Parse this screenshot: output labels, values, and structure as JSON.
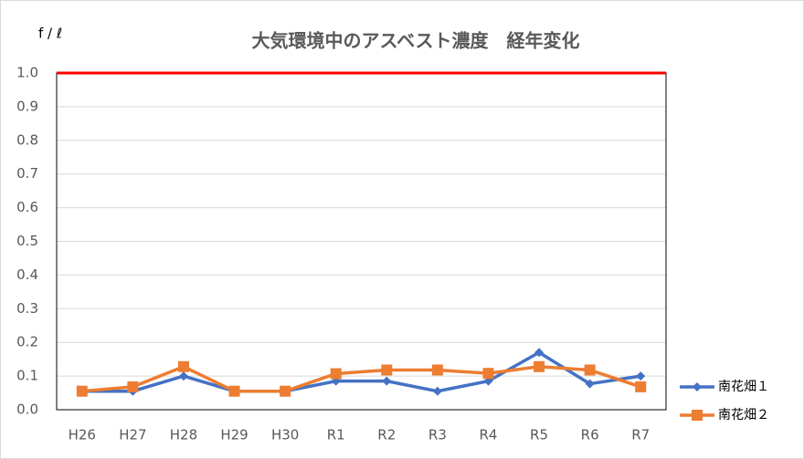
{
  "chart_data": {
    "type": "line",
    "title": "大気環境中のアスベスト濃度　経年変化",
    "y_axis_label": "f / ℓ",
    "categories": [
      "H26",
      "H27",
      "H28",
      "H29",
      "H30",
      "R1",
      "R2",
      "R3",
      "R4",
      "R5",
      "R6",
      "R7"
    ],
    "series": [
      {
        "name": "南花畑１",
        "color": "#4472c4",
        "marker": "diamond",
        "values": [
          0.055,
          0.055,
          0.1,
          0.055,
          0.055,
          0.085,
          0.085,
          0.055,
          0.085,
          0.17,
          0.077,
          0.1
        ]
      },
      {
        "name": "南花畑２",
        "color": "#ed7d31",
        "marker": "square",
        "values": [
          0.055,
          0.068,
          0.128,
          0.055,
          0.055,
          0.107,
          0.118,
          0.118,
          0.108,
          0.128,
          0.118,
          0.068
        ]
      }
    ],
    "ylim": [
      0,
      1
    ],
    "yticks": [
      {
        "value": 0,
        "label": "0.0"
      },
      0.1,
      0.2,
      0.3,
      0.4,
      0.5,
      0.6,
      0.7,
      0.8,
      0.9,
      {
        "value": 1,
        "label": "1.0"
      }
    ],
    "grid": true,
    "reference_line": {
      "value": 1,
      "color": "#ff0000"
    },
    "legend": "right"
  }
}
